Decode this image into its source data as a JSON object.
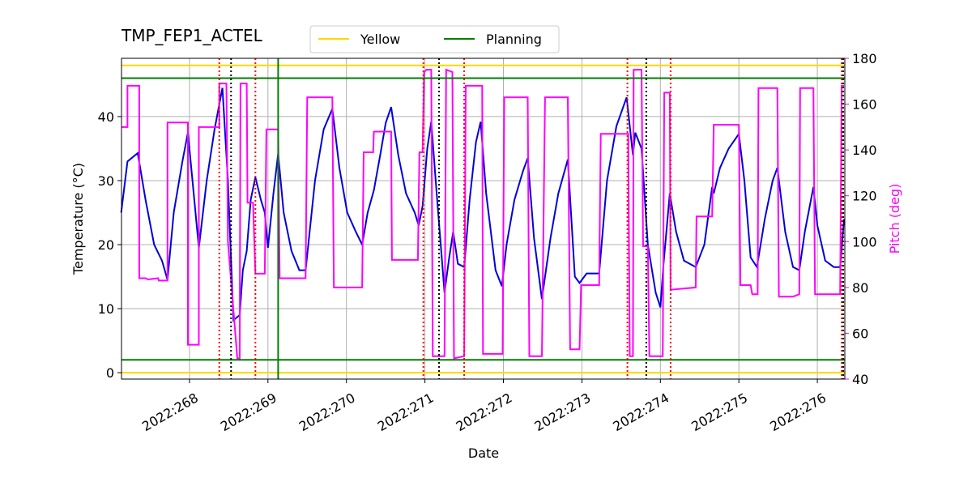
{
  "chart_data": {
    "type": "line",
    "title": "TMP_FEP1_ACTEL",
    "xlabel": "Date",
    "ylabel": "Temperature (°C)",
    "y2label": "Pitch (deg)",
    "xlim": [
      267.134,
      276.35
    ],
    "xticks": [
      {
        "value": 268,
        "label": "2022:268"
      },
      {
        "value": 269,
        "label": "2022:269"
      },
      {
        "value": 270,
        "label": "2022:270"
      },
      {
        "value": 271,
        "label": "2022:271"
      },
      {
        "value": 272,
        "label": "2022:272"
      },
      {
        "value": 273,
        "label": "2022:273"
      },
      {
        "value": 274,
        "label": "2022:274"
      },
      {
        "value": 275,
        "label": "2022:275"
      },
      {
        "value": 276,
        "label": "2022:276"
      }
    ],
    "ylim": [
      -1.0,
      49.1
    ],
    "yticks": [
      0,
      10,
      20,
      30,
      40
    ],
    "y2lim": [
      40,
      180
    ],
    "y2ticks": [
      40,
      60,
      80,
      100,
      120,
      140,
      160,
      180
    ],
    "grid": true,
    "legend": "upper center",
    "series": [
      {
        "color": "#0000dd",
        "axis": "y",
        "x": [
          267.13,
          267.21,
          267.34,
          267.44,
          267.55,
          267.65,
          267.72,
          267.8,
          267.91,
          267.98,
          268.12,
          268.22,
          268.32,
          268.42,
          268.49,
          268.56,
          268.64,
          268.68,
          268.73,
          268.78,
          268.84,
          268.91,
          268.96,
          269.0,
          269.07,
          269.13,
          269.2,
          269.3,
          269.4,
          269.48,
          269.6,
          269.71,
          269.82,
          269.91,
          270.01,
          270.12,
          270.2,
          270.27,
          270.35,
          270.43,
          270.5,
          270.57,
          270.66,
          270.76,
          270.87,
          270.92,
          270.97,
          271.03,
          271.08,
          271.15,
          271.25,
          271.31,
          271.36,
          271.42,
          271.5,
          271.57,
          271.65,
          271.71,
          271.78,
          271.9,
          271.98,
          272.04,
          272.14,
          272.25,
          272.31,
          272.39,
          272.49,
          272.6,
          272.7,
          272.82,
          272.91,
          272.97,
          273.06,
          273.22,
          273.32,
          273.44,
          273.57,
          273.65,
          273.68,
          273.76,
          273.84,
          273.94,
          274.0,
          274.04,
          274.12,
          274.2,
          274.3,
          274.45,
          274.56,
          274.66,
          274.68,
          274.76,
          274.87,
          275.0,
          275.07,
          275.15,
          275.23,
          275.33,
          275.43,
          275.49,
          275.59,
          275.69,
          275.77,
          275.84,
          275.95,
          276.0,
          276.1,
          276.21,
          276.29,
          276.34
        ],
        "values": [
          25,
          33,
          34.3,
          27,
          20,
          17.5,
          14.5,
          25,
          33,
          37.5,
          19.5,
          30,
          38,
          44.5,
          30,
          8.2,
          9,
          16,
          19,
          27,
          30.5,
          27,
          25,
          19.5,
          28,
          34.2,
          25,
          19,
          16,
          16,
          30,
          38,
          41.2,
          32,
          25,
          22,
          20,
          25,
          28.5,
          34,
          39,
          41.5,
          34,
          28,
          25,
          23,
          26,
          35,
          39.2,
          28,
          12.5,
          18,
          22,
          17,
          16.5,
          27,
          36,
          39.2,
          28,
          16,
          13.5,
          20,
          27,
          31.5,
          33.5,
          21,
          11.5,
          21,
          28,
          33.3,
          15,
          14,
          15.5,
          15.5,
          30,
          38.5,
          43,
          34,
          37.5,
          35,
          20,
          12.5,
          10.2,
          17,
          28,
          22,
          17.5,
          16.5,
          20,
          29,
          28,
          32,
          35,
          37.3,
          30,
          18,
          16.5,
          24,
          30,
          32,
          22,
          16.5,
          16,
          22,
          29,
          23,
          17.5,
          16.5,
          16.5,
          24
        ]
      },
      {
        "color": "#ff00ff",
        "axis": "y2",
        "x": [
          267.13,
          267.21,
          267.21,
          267.36,
          267.36,
          267.44,
          267.47,
          267.6,
          267.61,
          267.72,
          267.72,
          267.98,
          267.98,
          268.12,
          268.12,
          268.38,
          268.38,
          268.47,
          268.49,
          268.61,
          268.64,
          268.65,
          268.73,
          268.74,
          268.81,
          268.84,
          268.96,
          268.98,
          269.13,
          269.15,
          269.48,
          269.5,
          269.82,
          269.84,
          270.2,
          270.22,
          270.34,
          270.35,
          270.57,
          270.58,
          270.91,
          270.93,
          270.97,
          270.99,
          271.02,
          271.08,
          271.1,
          271.25,
          271.27,
          271.35,
          271.37,
          271.5,
          271.52,
          271.73,
          271.74,
          271.99,
          272.01,
          272.31,
          272.33,
          272.49,
          272.53,
          272.82,
          272.85,
          272.97,
          272.99,
          273.22,
          273.24,
          273.59,
          273.61,
          273.65,
          273.66,
          273.76,
          273.78,
          273.84,
          273.86,
          274.03,
          274.05,
          274.12,
          274.13,
          274.45,
          274.46,
          274.66,
          274.68,
          275.0,
          275.02,
          275.15,
          275.17,
          275.24,
          275.25,
          275.49,
          275.51,
          275.69,
          275.77,
          275.78,
          275.95,
          275.97,
          276.29,
          276.31,
          276.34
        ],
        "values": [
          150,
          150,
          168,
          168,
          84,
          84,
          83.5,
          84,
          83,
          83,
          152,
          152,
          55,
          55,
          150,
          150,
          169,
          169,
          100,
          49,
          49,
          169,
          169,
          117,
          117,
          86,
          86,
          149,
          149,
          84,
          84,
          163,
          163,
          80,
          80,
          139,
          139,
          148,
          148,
          92,
          92,
          139,
          139,
          174,
          175,
          175,
          50,
          50,
          175,
          174,
          49,
          50,
          168,
          168,
          51,
          51,
          163,
          163,
          50,
          50,
          163,
          163,
          53,
          53,
          81,
          81,
          147,
          147,
          50,
          50,
          175,
          175,
          98,
          98,
          50,
          50,
          165,
          165,
          79,
          80,
          111,
          111,
          151,
          151,
          81,
          81,
          77,
          77,
          167,
          167,
          76,
          76,
          77,
          167,
          167,
          77,
          77,
          168,
          168
        ]
      }
    ],
    "hlines": [
      {
        "name": "Yellow",
        "color": "#ffd700",
        "values": [
          0,
          48
        ]
      },
      {
        "name": "Planning",
        "color": "#008000",
        "values": [
          2,
          46
        ]
      }
    ],
    "vlines": [
      {
        "color": "#008000",
        "style": "solid",
        "x": [
          269.13
        ]
      },
      {
        "color": "#ff0000",
        "style": "dotted",
        "x": [
          268.38,
          268.84,
          270.98,
          271.5,
          273.58,
          274.13,
          276.31
        ]
      },
      {
        "color": "#000000",
        "style": "dotted",
        "x": [
          268.53,
          271.18,
          273.82,
          276.33
        ]
      }
    ]
  }
}
